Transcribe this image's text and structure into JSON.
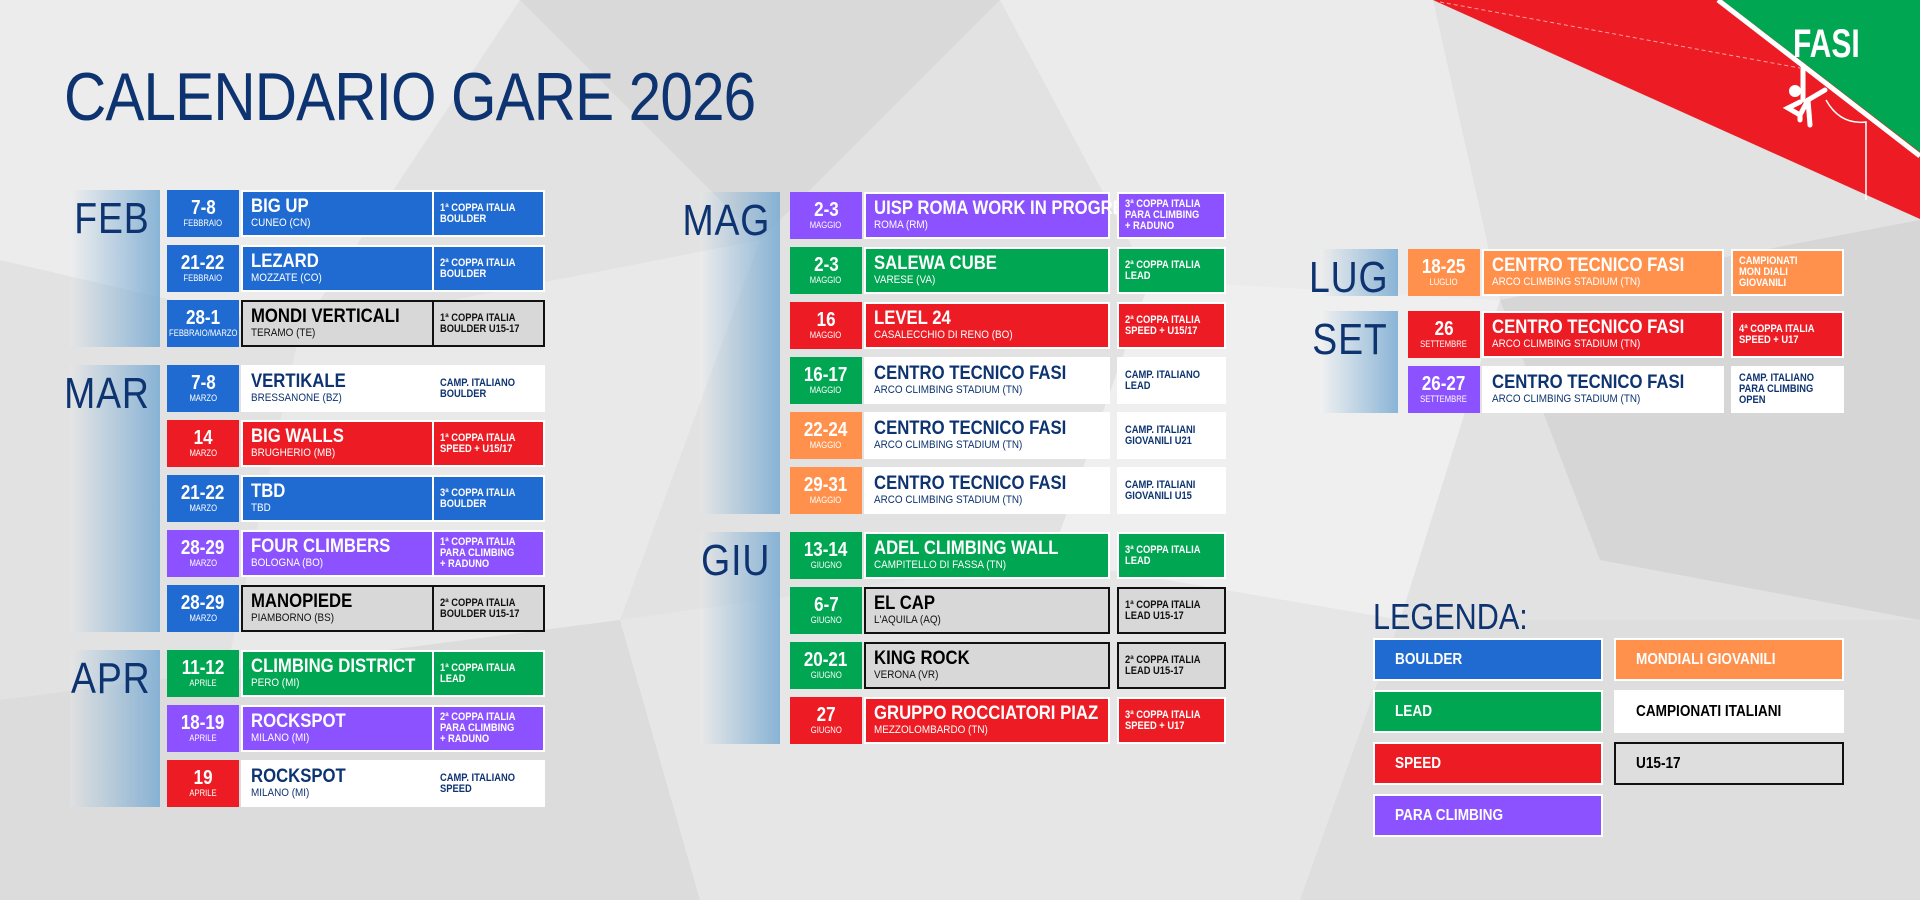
{
  "title": "CALENDARIO GARE 2026",
  "logo": {
    "text": "FASI",
    "icon": "climber-icon"
  },
  "colors": {
    "boulder": "#1f6bd1",
    "lead": "#00a651",
    "speed": "#ed1c24",
    "para": "#8c52ff",
    "mondiali": "#ff914d",
    "navy": "#0d3370",
    "white": "#ffffff",
    "u15": "#d8d8d8"
  },
  "columns": [
    {
      "months": [
        {
          "label": "FEB",
          "events": [
            {
              "date": "7-8",
              "month": "FEBBRAIO",
              "date_color": "boulder",
              "style": "color",
              "color": "boulder",
              "name": "BIG UP",
              "place": "CUNEO (CN)",
              "badge": [
                "1ª COPPA ITALIA",
                "BOULDER"
              ]
            },
            {
              "date": "21-22",
              "month": "FEBBRAIO",
              "date_color": "boulder",
              "style": "color",
              "color": "boulder",
              "name": "LEZARD",
              "place": "MOZZATE (CO)",
              "badge": [
                "2ª COPPA ITALIA",
                "BOULDER"
              ]
            },
            {
              "date": "28-1",
              "month": "FEBBRAIO/MARZO",
              "date_color": "boulder",
              "style": "u15",
              "color": "u15",
              "name": "MONDI VERTICALI",
              "place": "TERAMO (TE)",
              "badge": [
                "1ª COPPA ITALIA",
                "BOULDER U15-17"
              ]
            }
          ]
        },
        {
          "label": "MAR",
          "events": [
            {
              "date": "7-8",
              "month": "MARZO",
              "date_color": "boulder",
              "style": "white",
              "color": "white",
              "name": "VERTIKALE",
              "place": "BRESSANONE (BZ)",
              "badge": [
                "CAMP. ITALIANO",
                "BOULDER"
              ]
            },
            {
              "date": "14",
              "month": "MARZO",
              "date_color": "speed",
              "style": "color",
              "color": "speed",
              "name": "BIG WALLS",
              "place": "BRUGHERIO (MB)",
              "badge": [
                "1ª COPPA ITALIA",
                "SPEED + U15/17"
              ]
            },
            {
              "date": "21-22",
              "month": "MARZO",
              "date_color": "boulder",
              "style": "color",
              "color": "boulder",
              "name": "TBD",
              "place": "TBD",
              "badge": [
                "3ª COPPA ITALIA",
                "BOULDER"
              ]
            },
            {
              "date": "28-29",
              "month": "MARZO",
              "date_color": "para",
              "style": "color",
              "color": "para",
              "name": "FOUR CLIMBERS",
              "place": "BOLOGNA (BO)",
              "badge": [
                "1ª COPPA ITALIA",
                "PARA CLIMBING",
                "+ RADUNO"
              ]
            },
            {
              "date": "28-29",
              "month": "MARZO",
              "date_color": "boulder",
              "style": "u15",
              "color": "u15",
              "name": "MANOPIEDE",
              "place": "PIAMBORNO (BS)",
              "badge": [
                "2ª COPPA ITALIA",
                "BOULDER U15-17"
              ]
            }
          ]
        },
        {
          "label": "APR",
          "events": [
            {
              "date": "11-12",
              "month": "APRILE",
              "date_color": "lead",
              "style": "color",
              "color": "lead",
              "name": "CLIMBING DISTRICT",
              "place": "PERO (MI)",
              "badge": [
                "1ª COPPA ITALIA",
                "LEAD"
              ]
            },
            {
              "date": "18-19",
              "month": "APRILE",
              "date_color": "para",
              "style": "color",
              "color": "para",
              "name": "ROCKSPOT",
              "place": "MILANO (MI)",
              "badge": [
                "2ª COPPA ITALIA",
                "PARA CLIMBING",
                "+ RADUNO"
              ]
            },
            {
              "date": "19",
              "month": "APRILE",
              "date_color": "speed",
              "style": "white",
              "color": "white",
              "name": "ROCKSPOT",
              "place": "MILANO (MI)",
              "badge": [
                "CAMP. ITALIANO",
                "SPEED"
              ]
            }
          ]
        }
      ]
    },
    {
      "months": [
        {
          "label": "MAG",
          "events": [
            {
              "date": "2-3",
              "month": "MAGGIO",
              "date_color": "para",
              "style": "color",
              "color": "para",
              "name": "UISP ROMA WORK IN PROGRESS",
              "place": "ROMA (RM)",
              "badge": [
                "3ª COPPA ITALIA",
                "PARA CLIMBING",
                "+ RADUNO"
              ]
            },
            {
              "date": "2-3",
              "month": "MAGGIO",
              "date_color": "lead",
              "style": "color",
              "color": "lead",
              "name": "SALEWA CUBE",
              "place": "VARESE (VA)",
              "badge": [
                "2ª COPPA ITALIA",
                "LEAD"
              ]
            },
            {
              "date": "16",
              "month": "MAGGIO",
              "date_color": "speed",
              "style": "color",
              "color": "speed",
              "name": "LEVEL 24",
              "place": "CASALECCHIO DI RENO (BO)",
              "badge": [
                "2ª COPPA ITALIA",
                "SPEED + U15/17"
              ]
            },
            {
              "date": "16-17",
              "month": "MAGGIO",
              "date_color": "lead",
              "style": "white",
              "color": "white",
              "name": "CENTRO TECNICO FASI",
              "place": "ARCO CLIMBING STADIUM (TN)",
              "badge": [
                "CAMP. ITALIANO",
                "LEAD"
              ]
            },
            {
              "date": "22-24",
              "month": "MAGGIO",
              "date_color": "mondiali",
              "style": "white",
              "color": "white",
              "name": "CENTRO TECNICO FASI",
              "place": "ARCO CLIMBING STADIUM (TN)",
              "badge": [
                "CAMP. ITALIANI",
                "GIOVANILI U21"
              ]
            },
            {
              "date": "29-31",
              "month": "MAGGIO",
              "date_color": "mondiali",
              "style": "white",
              "color": "white",
              "name": "CENTRO TECNICO FASI",
              "place": "ARCO CLIMBING STADIUM (TN)",
              "badge": [
                "CAMP. ITALIANI",
                "GIOVANILI U15"
              ]
            }
          ]
        },
        {
          "label": "GIU",
          "events": [
            {
              "date": "13-14",
              "month": "GIUGNO",
              "date_color": "lead",
              "style": "color",
              "color": "lead",
              "name": "ADEL CLIMBING WALL",
              "place": "CAMPITELLO DI FASSA (TN)",
              "badge": [
                "3ª COPPA ITALIA",
                "LEAD"
              ]
            },
            {
              "date": "6-7",
              "month": "GIUGNO",
              "date_color": "lead",
              "style": "u15",
              "color": "u15",
              "name": "EL CAP",
              "place": "L'AQUILA (AQ)",
              "badge": [
                "1ª COPPA ITALIA",
                "LEAD U15-17"
              ]
            },
            {
              "date": "20-21",
              "month": "GIUGNO",
              "date_color": "lead",
              "style": "u15",
              "color": "u15",
              "name": "KING ROCK",
              "place": "VERONA (VR)",
              "badge": [
                "2ª COPPA ITALIA",
                "LEAD U15-17"
              ]
            },
            {
              "date": "27",
              "month": "GIUGNO",
              "date_color": "speed",
              "style": "color",
              "color": "speed",
              "name": "GRUPPO ROCCIATORI PIAZ",
              "place": "MEZZOLOMBARDO (TN)",
              "badge": [
                "3ª COPPA ITALIA",
                "SPEED + U17"
              ]
            }
          ]
        }
      ]
    },
    {
      "months": [
        {
          "label": "LUG",
          "events": [
            {
              "date": "18-25",
              "month": "LUGLIO",
              "date_color": "mondiali",
              "style": "color",
              "color": "mondiali",
              "name": "CENTRO TECNICO FASI",
              "place": "ARCO CLIMBING STADIUM (TN)",
              "badge": [
                "CAMPIONATI",
                "MON DIALI",
                "GIOVANILI"
              ]
            }
          ]
        },
        {
          "label": "SET",
          "events": [
            {
              "date": "26",
              "month": "SETTEMBRE",
              "date_color": "speed",
              "style": "color",
              "color": "speed",
              "name": "CENTRO TECNICO FASI",
              "place": "ARCO CLIMBING STADIUM (TN)",
              "badge": [
                "4ª COPPA ITALIA",
                "SPEED + U17"
              ]
            },
            {
              "date": "26-27",
              "month": "SETTEMBRE",
              "date_color": "para",
              "style": "white",
              "color": "white",
              "name": "CENTRO TECNICO FASI",
              "place": "ARCO CLIMBING STADIUM (TN)",
              "badge": [
                "CAMP. ITALIANO",
                "PARA CLIMBING",
                "OPEN"
              ]
            }
          ]
        }
      ]
    }
  ],
  "legend": {
    "title": "LEGENDA:",
    "items": [
      {
        "label": "BOULDER",
        "color": "boulder",
        "text_color": "#ffffff"
      },
      {
        "label": "LEAD",
        "color": "lead",
        "text_color": "#ffffff"
      },
      {
        "label": "SPEED",
        "color": "speed",
        "text_color": "#ffffff"
      },
      {
        "label": "PARA CLIMBING",
        "color": "para",
        "text_color": "#ffffff"
      },
      {
        "label": "MONDIALI GIOVANILI",
        "color": "mondiali",
        "text_color": "#ffffff"
      },
      {
        "label": "CAMPIONATI ITALIANI",
        "color": "white",
        "text_color": "#000000"
      },
      {
        "label": "U15-17",
        "color": "transparent",
        "text_color": "#000000"
      }
    ]
  }
}
